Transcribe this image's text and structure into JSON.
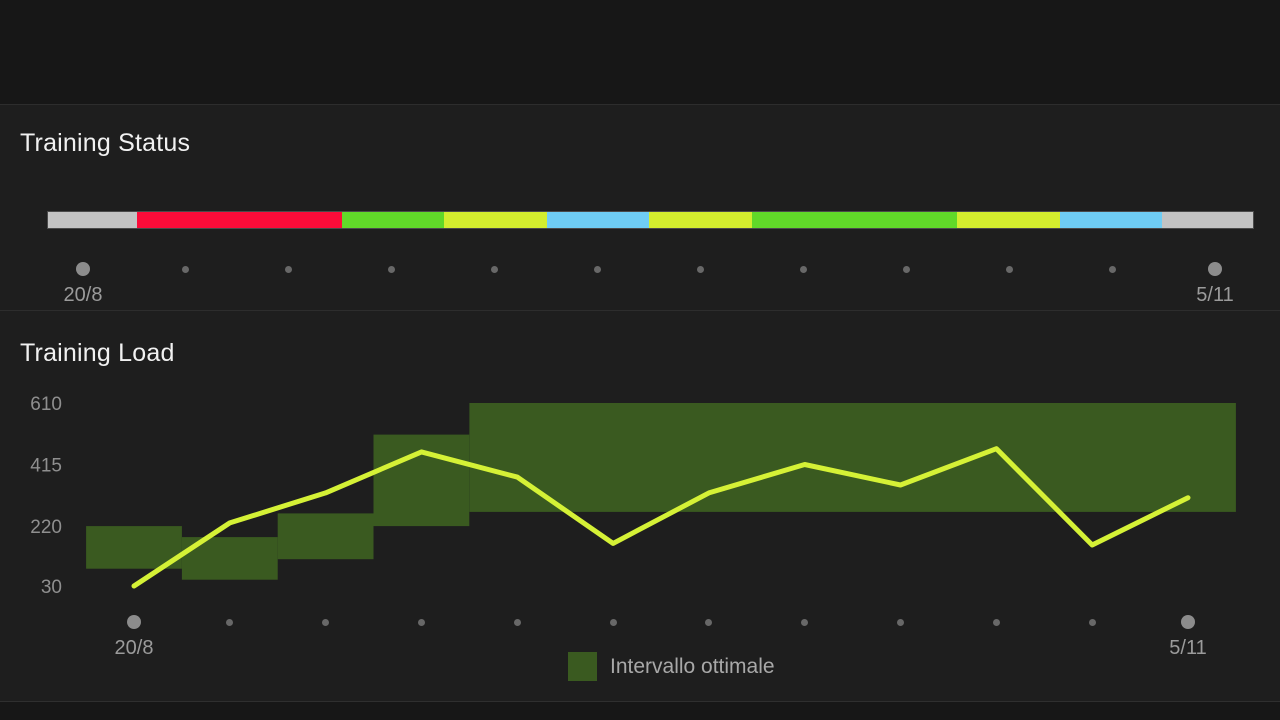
{
  "colors": {
    "page_bg": "#171717",
    "card_bg": "#1e1e1e",
    "title_text": "#f1f1f1",
    "axis_text": "#8f8f8f",
    "date_text": "#9b9b9b",
    "legend_text": "#a8a8a8",
    "dot_big": "#8c8c8c",
    "dot_small": "#686868",
    "status_gray": "#c3c3c3",
    "status_red": "#fb0c39",
    "status_green": "#61d929",
    "status_lime": "#d3ee2e",
    "status_blue": "#6fcdf4",
    "load_line": "#d5f136",
    "optimal_band": "#3a5a20"
  },
  "training_status": {
    "title": "Training Status",
    "timeline": {
      "start_label": "20/8",
      "end_label": "5/11",
      "dot_count": 12
    }
  },
  "training_load": {
    "title": "Training Load",
    "legend_label": "Intervallo ottimale",
    "timeline": {
      "start_label": "20/8",
      "end_label": "5/11",
      "dot_count": 12
    }
  },
  "chart_data": [
    {
      "type": "bar",
      "subtype": "horizontal-status-timeline",
      "title": "Training Status",
      "x_start_label": "20/8",
      "x_end_label": "5/11",
      "weeks_total": 11.75,
      "segments": [
        {
          "status": "gray",
          "weeks": 0.865
        },
        {
          "status": "red",
          "weeks": 2
        },
        {
          "status": "green",
          "weeks": 1
        },
        {
          "status": "lime",
          "weeks": 1
        },
        {
          "status": "blue",
          "weeks": 1
        },
        {
          "status": "lime",
          "weeks": 1
        },
        {
          "status": "green",
          "weeks": 2
        },
        {
          "status": "lime",
          "weeks": 1
        },
        {
          "status": "blue",
          "weeks": 1
        },
        {
          "status": "gray",
          "weeks": 0.885
        }
      ]
    },
    {
      "type": "line",
      "title": "Training Load",
      "y_ticks": [
        610,
        415,
        220,
        30
      ],
      "ylim": [
        30,
        610
      ],
      "grid": false,
      "x_week_labels": [
        "20/8",
        "",
        "",
        "",
        "",
        "",
        "",
        "",
        "",
        "",
        "",
        "5/11"
      ],
      "values": [
        30,
        230,
        325,
        455,
        375,
        165,
        325,
        415,
        350,
        465,
        160,
        310
      ],
      "optimal_range_steps": [
        {
          "week_start": 1,
          "week_end": 1,
          "min": 85,
          "max": 220
        },
        {
          "week_start": 2,
          "week_end": 2,
          "min": 50,
          "max": 185
        },
        {
          "week_start": 3,
          "week_end": 3,
          "min": 115,
          "max": 260
        },
        {
          "week_start": 4,
          "week_end": 4,
          "min": 220,
          "max": 510
        },
        {
          "week_start": 5,
          "week_end": 12,
          "min": 265,
          "max": 610
        }
      ],
      "legend": [
        {
          "label": "Intervallo ottimale",
          "color_key": "optimal_band"
        }
      ],
      "legend_position": "bottom-center"
    }
  ]
}
